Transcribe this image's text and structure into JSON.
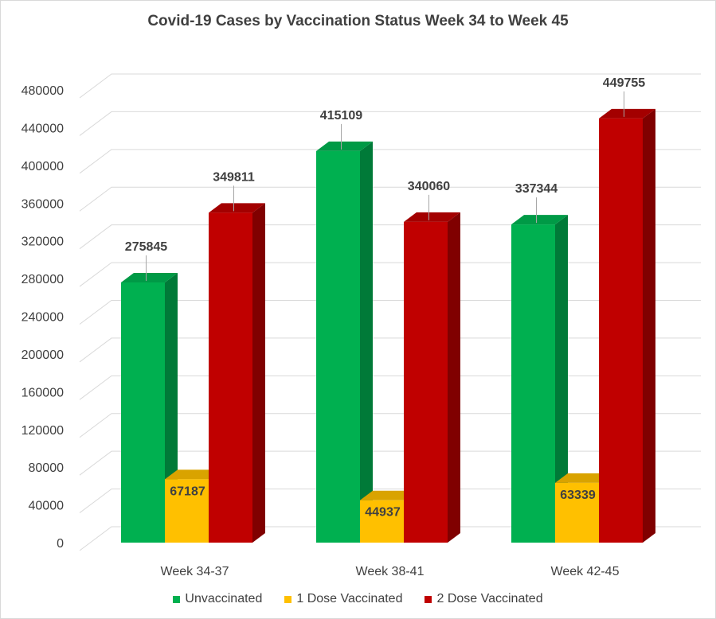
{
  "chart_data": {
    "type": "bar",
    "title": "Covid-19 Cases by Vaccination Status Week 34 to Week 45",
    "categories": [
      "Week 34-37",
      "Week 38-41",
      "Week 42-45"
    ],
    "series": [
      {
        "name": "Unvaccinated",
        "values": [
          275845,
          415109,
          337344
        ],
        "color": "#00b050",
        "side_color": "#007a38",
        "top_color": "#009a46"
      },
      {
        "name": "1 Dose Vaccinated",
        "values": [
          67187,
          44937,
          63339
        ],
        "color": "#ffc000",
        "side_color": "#b38600",
        "top_color": "#d9a300"
      },
      {
        "name": "2 Dose Vaccinated",
        "values": [
          349811,
          340060,
          449755
        ],
        "color": "#c00000",
        "side_color": "#800000",
        "top_color": "#a30000"
      }
    ],
    "ylim": [
      0,
      480000
    ],
    "yticks": [
      "0",
      "40000",
      "80000",
      "120000",
      "160000",
      "200000",
      "240000",
      "280000",
      "320000",
      "360000",
      "400000",
      "440000",
      "480000"
    ],
    "grid": true,
    "legend_position": "bottom",
    "three_d": true
  }
}
